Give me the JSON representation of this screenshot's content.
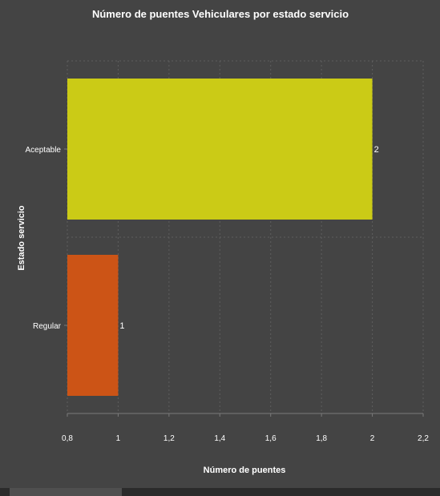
{
  "chart_data": {
    "type": "bar",
    "orientation": "horizontal",
    "title": "Número de puentes Vehiculares por estado servicio",
    "xlabel": "Número de puentes",
    "ylabel": "Estado servicio",
    "categories": [
      "Aceptable",
      "Regular"
    ],
    "values": [
      2,
      1
    ],
    "data_labels": [
      "2",
      "1"
    ],
    "bar_colors": [
      "#cbcb16",
      "#cc5416"
    ],
    "xlim": [
      0.8,
      2.2
    ],
    "x_ticks": [
      0.8,
      1,
      1.2,
      1.4,
      1.6,
      1.8,
      2,
      2.2
    ],
    "x_tick_labels": [
      "0,8",
      "1",
      "1,2",
      "1,4",
      "1,6",
      "1,8",
      "2",
      "2,2"
    ],
    "grid": true,
    "legend": "none"
  },
  "colors": {
    "background": "#444444",
    "grid": "#5e5e5e",
    "text": "#ffffff"
  }
}
